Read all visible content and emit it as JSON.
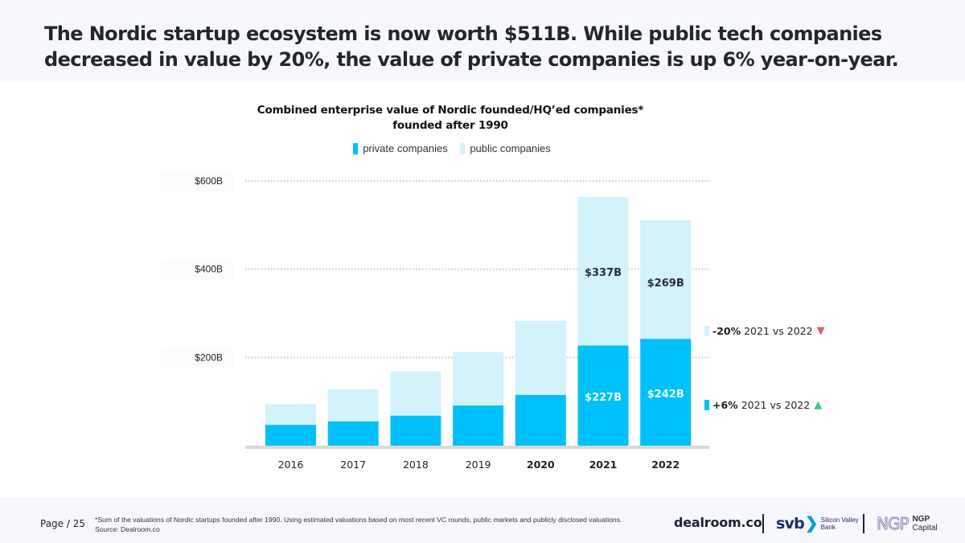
{
  "header": {
    "headline": "The Nordic startup ecosystem is now worth $511B. While public tech companies decreased in value by 20%, the value of private companies is up 6% year-on-year."
  },
  "colors": {
    "private": "#00c0fa",
    "public": "#d2f2fc",
    "grid": "#c8c8c8",
    "axis": "#d9d9d9",
    "down": "#e85d6a",
    "up": "#3cc97a"
  },
  "chart_data": {
    "type": "bar",
    "stacked": true,
    "title": "Combined enterprise value of Nordic founded/HQ’ed companies* founded after 1990",
    "title_lines": [
      "Combined enterprise value of Nordic founded/HQ’ed companies*",
      "founded after 1990"
    ],
    "xlabel": "",
    "ylabel": "",
    "ylim": [
      0,
      600
    ],
    "yticks": [
      200,
      400,
      600
    ],
    "ytick_labels": [
      "$200B",
      "$400B",
      "$600B"
    ],
    "grid": true,
    "legend_position": "top-center",
    "categories": [
      "2016",
      "2017",
      "2018",
      "2019",
      "2020",
      "2021",
      "2022"
    ],
    "bold_categories": [
      "2020",
      "2021",
      "2022"
    ],
    "series": [
      {
        "name": "private companies",
        "values": [
          47,
          55,
          68,
          91,
          115,
          227,
          242
        ]
      },
      {
        "name": "public companies",
        "values": [
          47,
          73,
          100,
          121,
          168,
          337,
          269
        ]
      }
    ],
    "data_labels": [
      {
        "category": "2021",
        "series": "public companies",
        "text": "$337B"
      },
      {
        "category": "2022",
        "series": "public companies",
        "text": "$269B"
      },
      {
        "category": "2021",
        "series": "private companies",
        "text": "$227B"
      },
      {
        "category": "2022",
        "series": "private companies",
        "text": "$242B"
      }
    ],
    "annotations": [
      {
        "series": "public companies",
        "change": "-20%",
        "text": "2021 vs 2022",
        "direction": "down"
      },
      {
        "series": "private companies",
        "change": "+6%",
        "text": "2021 vs 2022",
        "direction": "up"
      }
    ]
  },
  "legend": {
    "private": "private companies",
    "public": "public companies"
  },
  "annotations": {
    "public_change": "-20%",
    "public_text": "2021 vs 2022",
    "public_icon": "▼",
    "private_change": "+6%",
    "private_text": "2021 vs 2022",
    "private_icon": "▲"
  },
  "footer": {
    "page_label": "Page",
    "page_number": "/ 25",
    "footnote": "*Sum of the valuations of Nordic startups founded after 1990. Using estimated valuations based on most recent VC rounds, public markets and publicly disclosed valuations.",
    "source": "Source: Dealroom.co",
    "logo_dealroom": "dealroom.co",
    "logo_svb": "svb",
    "logo_svb_chevron": "❯",
    "logo_svb_sub1": "Silicon Valley",
    "logo_svb_sub2": "Bank",
    "logo_ngp_mark": "NGP",
    "logo_ngp_line1": "NGP",
    "logo_ngp_line2": "Capital"
  }
}
